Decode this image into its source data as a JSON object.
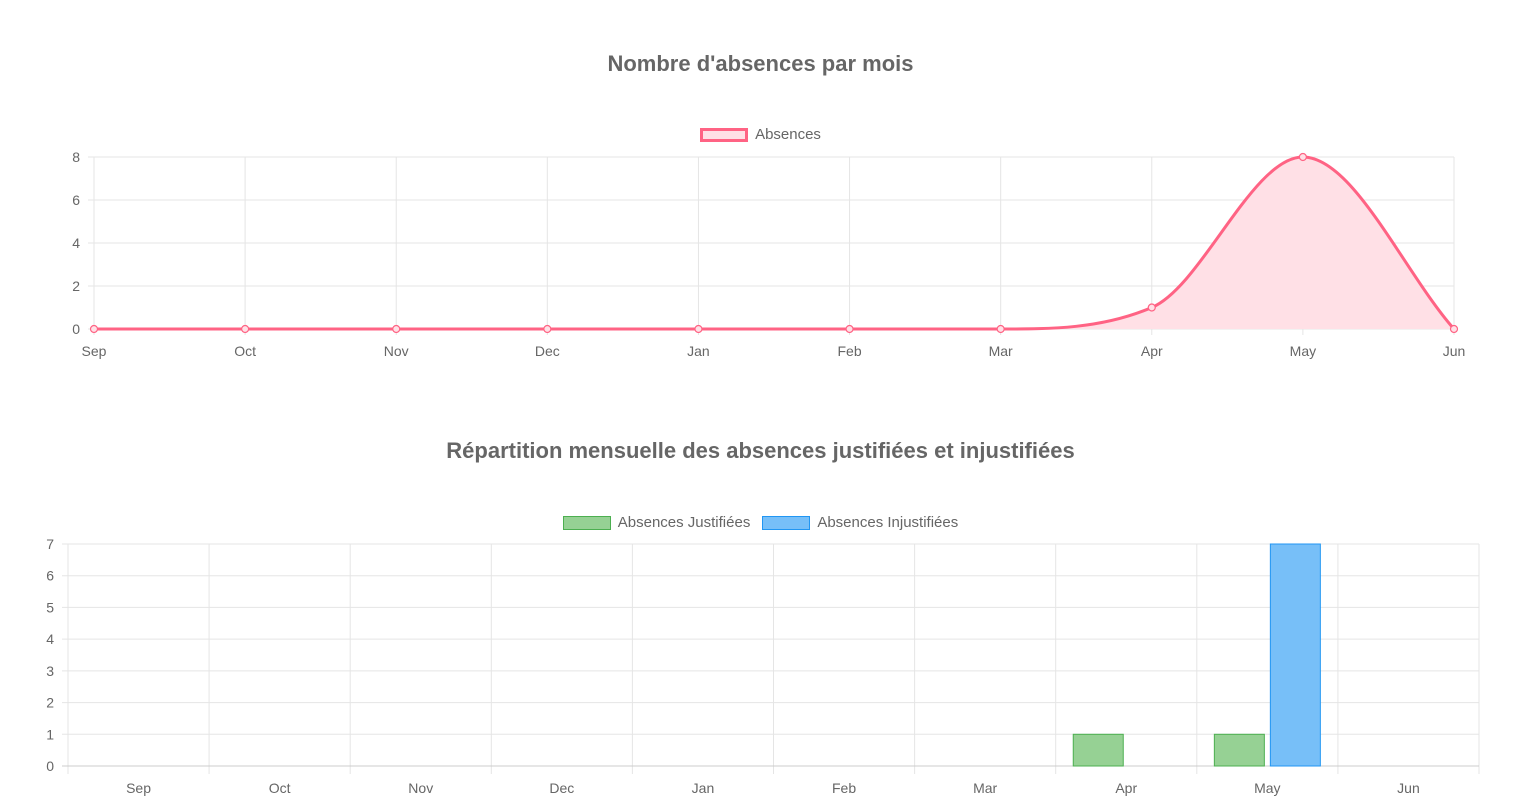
{
  "chart_data": [
    {
      "type": "line",
      "title": "Nombre d'absences par mois",
      "categories": [
        "Sep",
        "Oct",
        "Nov",
        "Dec",
        "Jan",
        "Feb",
        "Mar",
        "Apr",
        "May",
        "Jun"
      ],
      "series": [
        {
          "name": "Absences",
          "values": [
            0,
            0,
            0,
            0,
            0,
            0,
            0,
            1,
            8,
            0
          ],
          "color": "#ff6384",
          "fill": "#ffe0e6"
        }
      ],
      "yticks": [
        0,
        2,
        4,
        6,
        8
      ],
      "ylim": [
        0,
        8
      ],
      "grid": true,
      "legend": "top"
    },
    {
      "type": "bar",
      "title": "Répartition mensuelle des absences justifiées et injustifiées",
      "categories": [
        "Sep",
        "Oct",
        "Nov",
        "Dec",
        "Jan",
        "Feb",
        "Mar",
        "Apr",
        "May",
        "Jun"
      ],
      "series": [
        {
          "name": "Absences Justifiées",
          "values": [
            0,
            0,
            0,
            0,
            0,
            0,
            0,
            1,
            1,
            0
          ],
          "color": "#4caf50",
          "fill": "#96d194"
        },
        {
          "name": "Absences Injustifiées",
          "values": [
            0,
            0,
            0,
            0,
            0,
            0,
            0,
            0,
            7,
            0
          ],
          "color": "#2196f3",
          "fill": "#77bff8"
        }
      ],
      "yticks": [
        0,
        1,
        2,
        3,
        4,
        5,
        6,
        7
      ],
      "ylim": [
        0,
        7
      ],
      "grid": true,
      "legend": "top"
    }
  ]
}
